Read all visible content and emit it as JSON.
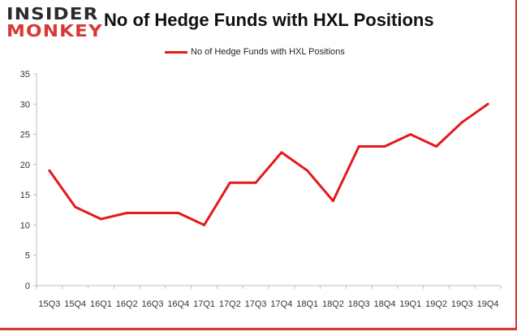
{
  "brand": {
    "logo_top": "INSIDER",
    "logo_bottom": "MONKEY"
  },
  "chart_data": {
    "type": "line",
    "title": "No of Hedge Funds with HXL Positions",
    "xlabel": "",
    "ylabel": "",
    "categories": [
      "15Q3",
      "15Q4",
      "16Q1",
      "16Q2",
      "16Q3",
      "16Q4",
      "17Q1",
      "17Q2",
      "17Q3",
      "17Q4",
      "18Q1",
      "18Q2",
      "18Q3",
      "18Q4",
      "19Q1",
      "19Q2",
      "19Q3",
      "19Q4"
    ],
    "series": [
      {
        "name": "No of Hedge Funds with HXL Positions",
        "values": [
          19,
          13,
          11,
          12,
          12,
          12,
          10,
          17,
          17,
          22,
          19,
          14,
          23,
          23,
          25,
          23,
          27,
          30
        ]
      }
    ],
    "ylim": [
      0,
      35
    ],
    "yticks": [
      0,
      5,
      10,
      15,
      20,
      25,
      30,
      35
    ],
    "grid": false,
    "legend_position": "top-center",
    "line_color": "#e31a1c"
  }
}
